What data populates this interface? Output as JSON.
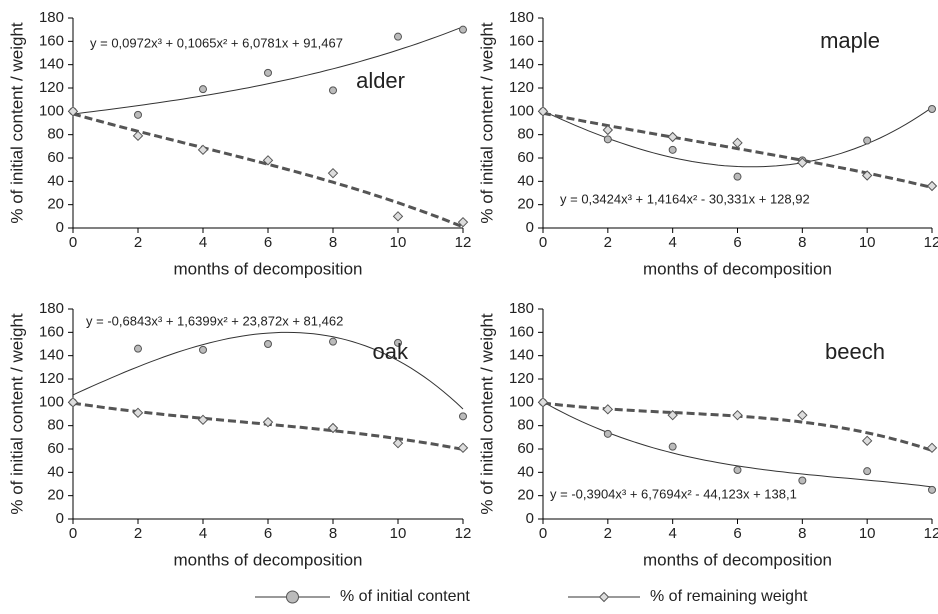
{
  "legend": [
    "% of initial content",
    "% of remaining weight"
  ],
  "chart_data": [
    {
      "type": "scatter",
      "title": "alder",
      "annotation": "y = 0,0972x³ + 0,1065x² + 6,0781x + 91,467",
      "xlabel": "months of decomposition",
      "ylabel": "% of initial content / weight",
      "x": [
        0,
        2,
        4,
        6,
        8,
        10,
        12
      ],
      "series": [
        {
          "marker": "circle",
          "trend": "solid",
          "color": "#bbbbbb",
          "values": [
            100,
            97,
            119,
            133,
            118,
            164,
            170
          ]
        },
        {
          "marker": "diamond",
          "trend": "dashed",
          "color": "#dddddd",
          "values": [
            100,
            79,
            67,
            58,
            47,
            10,
            5
          ]
        }
      ],
      "xlim": [
        0,
        12
      ],
      "xticks": [
        0,
        2,
        4,
        6,
        8,
        10,
        12
      ],
      "ylim": [
        0,
        180
      ],
      "yticks": [
        0,
        20,
        40,
        60,
        80,
        100,
        120,
        140,
        160,
        180
      ]
    },
    {
      "type": "scatter",
      "title": "maple",
      "annotation": "y = 0,3424x³ + 1,4164x² - 30,331x + 128,92",
      "xlabel": "months of decomposition",
      "ylabel": "% of initial content / weight",
      "x": [
        0,
        2,
        4,
        6,
        8,
        10,
        12
      ],
      "series": [
        {
          "marker": "circle",
          "trend": "solid",
          "color": "#bbbbbb",
          "values": [
            100,
            76,
            67,
            44,
            58,
            75,
            102
          ]
        },
        {
          "marker": "diamond",
          "trend": "dashed",
          "color": "#dddddd",
          "values": [
            100,
            84,
            78,
            73,
            56,
            45,
            36
          ]
        }
      ],
      "xlim": [
        0,
        12
      ],
      "xticks": [
        0,
        2,
        4,
        6,
        8,
        10,
        12
      ],
      "ylim": [
        0,
        180
      ],
      "yticks": [
        0,
        20,
        40,
        60,
        80,
        100,
        120,
        140,
        160,
        180
      ]
    },
    {
      "type": "scatter",
      "title": "oak",
      "annotation": "y = -0,6843x³ + 1,6399x² + 23,872x + 81,462",
      "xlabel": "months of decomposition",
      "ylabel": "% of initial content / weight",
      "x": [
        0,
        2,
        4,
        6,
        8,
        10,
        12
      ],
      "series": [
        {
          "marker": "circle",
          "trend": "solid",
          "color": "#bbbbbb",
          "values": [
            100,
            146,
            145,
            150,
            152,
            151,
            88
          ]
        },
        {
          "marker": "diamond",
          "trend": "dashed",
          "color": "#dddddd",
          "values": [
            100,
            91,
            85,
            83,
            78,
            65,
            61
          ]
        }
      ],
      "xlim": [
        0,
        12
      ],
      "xticks": [
        0,
        2,
        4,
        6,
        8,
        10,
        12
      ],
      "ylim": [
        0,
        180
      ],
      "yticks": [
        0,
        20,
        40,
        60,
        80,
        100,
        120,
        140,
        160,
        180
      ]
    },
    {
      "type": "scatter",
      "title": "beech",
      "annotation": "y = -0,3904x³ + 6,7694x² - 44,123x + 138,1",
      "xlabel": "months of decomposition",
      "ylabel": "% of initial content / weight",
      "x": [
        0,
        2,
        4,
        6,
        8,
        10,
        12
      ],
      "series": [
        {
          "marker": "circle",
          "trend": "solid",
          "color": "#bbbbbb",
          "values": [
            100,
            73,
            62,
            42,
            33,
            41,
            25
          ]
        },
        {
          "marker": "diamond",
          "trend": "dashed",
          "color": "#dddddd",
          "values": [
            100,
            94,
            89,
            89,
            89,
            67,
            61
          ]
        }
      ],
      "xlim": [
        0,
        12
      ],
      "xticks": [
        0,
        2,
        4,
        6,
        8,
        10,
        12
      ],
      "ylim": [
        0,
        180
      ],
      "yticks": [
        0,
        20,
        40,
        60,
        80,
        100,
        120,
        140,
        160,
        180
      ]
    }
  ]
}
